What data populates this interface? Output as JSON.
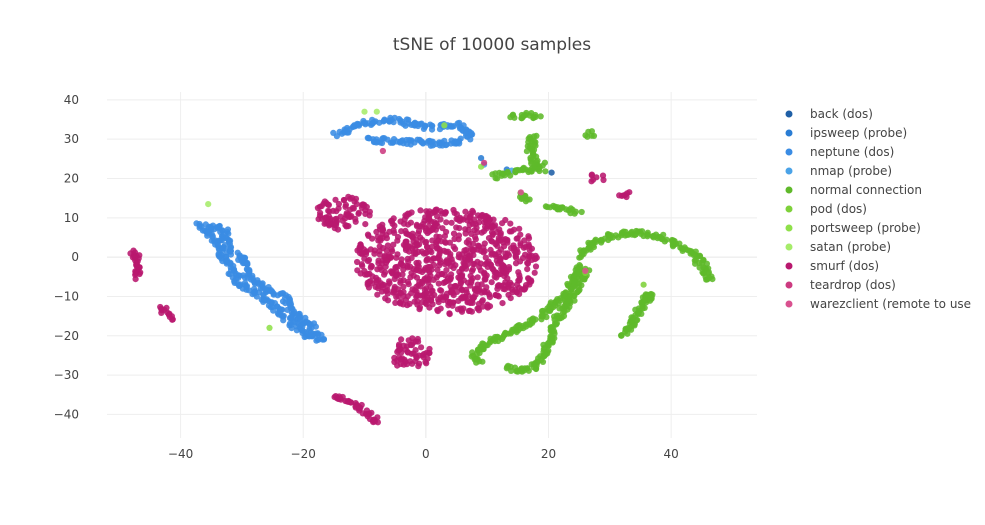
{
  "chart_data": {
    "type": "scatter",
    "title": "tSNE of 10000 samples",
    "xlabel": "",
    "ylabel": "",
    "xlim": [
      -52,
      54
    ],
    "ylim": [
      -46,
      42
    ],
    "x_ticks": [
      -40,
      -20,
      0,
      20,
      40
    ],
    "y_ticks": [
      -40,
      -30,
      -20,
      -10,
      0,
      10,
      20,
      30,
      40
    ],
    "grid": true,
    "legend_position": "right",
    "series": [
      {
        "name": "back (dos)",
        "color": "#1f5fa6",
        "x": [
          20.5
        ],
        "y": [
          21.5
        ]
      },
      {
        "name": "ipsweep (probe)",
        "color": "#2a7dd4",
        "x": [
          13.2,
          9.0
        ],
        "y": [
          22.3,
          25.2
        ]
      },
      {
        "name": "neptune (dos)",
        "color": "#3a8ce4",
        "clusters": [
          {
            "shape": "band",
            "points": [
              [
                -14.4,
                31.0
              ],
              [
                -11.0,
                34.0
              ],
              [
                -5.0,
                35.0
              ],
              [
                0.0,
                33.0
              ],
              [
                5.0,
                33.5
              ],
              [
                7.5,
                31.5
              ],
              [
                5.0,
                29.0
              ],
              [
                0.0,
                29.0
              ],
              [
                -5.0,
                29.5
              ],
              [
                -10.0,
                30.0
              ]
            ]
          },
          {
            "shape": "band",
            "points": [
              [
                -37.0,
                8.5
              ],
              [
                -33.0,
                7.0
              ],
              [
                -32.0,
                2.0
              ],
              [
                -30.0,
                0.0
              ],
              [
                -29.0,
                -5.0
              ],
              [
                -26.0,
                -8.0
              ],
              [
                -23.0,
                -10.0
              ],
              [
                -22.0,
                -14.0
              ],
              [
                -19.0,
                -17.0
              ],
              [
                -17.0,
                -21.5
              ]
            ]
          },
          {
            "shape": "band",
            "points": [
              [
                -36.5,
                7.5
              ],
              [
                -34.0,
                4.0
              ],
              [
                -33.0,
                0.0
              ],
              [
                -30.5,
                -6.5
              ],
              [
                -27.0,
                -9.5
              ],
              [
                -24.5,
                -13.0
              ],
              [
                -20.0,
                -19.0
              ],
              [
                -18.0,
                -21.0
              ]
            ]
          }
        ]
      },
      {
        "name": "nmap (probe)",
        "color": "#4aa3e8",
        "x": [
          9.5,
          14.0
        ],
        "y": [
          23.5,
          22.0
        ]
      },
      {
        "name": "normal connection",
        "color": "#5fb92a",
        "clusters": [
          {
            "shape": "band",
            "points": [
              [
                14.0,
                36.0
              ],
              [
                18.5,
                36.0
              ]
            ]
          },
          {
            "shape": "band",
            "points": [
              [
                17.5,
                31.0
              ],
              [
                17.0,
                27.0
              ],
              [
                18.0,
                23.0
              ],
              [
                19.5,
                22.0
              ]
            ]
          },
          {
            "shape": "band",
            "points": [
              [
                11.0,
                20.5
              ],
              [
                14.0,
                21.5
              ],
              [
                17.5,
                22.5
              ],
              [
                19.0,
                23.5
              ]
            ]
          },
          {
            "shape": "band",
            "points": [
              [
                15.0,
                16.5
              ],
              [
                16.5,
                14.0
              ]
            ]
          },
          {
            "shape": "band",
            "points": [
              [
                20.0,
                13.0
              ],
              [
                23.0,
                12.0
              ],
              [
                25.0,
                11.5
              ]
            ]
          },
          {
            "shape": "band",
            "points": [
              [
                26.5,
                31.0
              ],
              [
                27.0,
                31.5
              ]
            ]
          },
          {
            "shape": "band",
            "points": [
              [
                25.0,
                0.0
              ],
              [
                27.5,
                4.0
              ],
              [
                32.0,
                6.0
              ],
              [
                36.0,
                6.0
              ],
              [
                40.0,
                4.0
              ],
              [
                43.5,
                1.0
              ],
              [
                45.5,
                -3.0
              ],
              [
                46.5,
                -6.0
              ]
            ]
          },
          {
            "shape": "band",
            "points": [
              [
                25.5,
                -2.0
              ],
              [
                23.0,
                -9.0
              ],
              [
                19.0,
                -15.0
              ],
              [
                14.0,
                -19.0
              ],
              [
                10.0,
                -22.0
              ],
              [
                7.5,
                -25.5
              ],
              [
                9.0,
                -27.0
              ]
            ]
          },
          {
            "shape": "band",
            "points": [
              [
                26.0,
                -3.0
              ],
              [
                24.0,
                -10.0
              ],
              [
                21.5,
                -15.5
              ],
              [
                20.0,
                -22.0
              ],
              [
                18.5,
                -27.0
              ],
              [
                16.0,
                -29.0
              ],
              [
                13.0,
                -28.0
              ]
            ]
          },
          {
            "shape": "band",
            "points": [
              [
                32.0,
                -20.0
              ],
              [
                33.5,
                -17.0
              ],
              [
                35.0,
                -13.0
              ],
              [
                36.5,
                -9.0
              ],
              [
                36.0,
                -11.0
              ]
            ]
          }
        ]
      },
      {
        "name": "pod (dos)",
        "color": "#7ed13a",
        "x": [
          35.5,
          26.0
        ],
        "y": [
          -7.0,
          -4.0
        ]
      },
      {
        "name": "portsweep (probe)",
        "color": "#8fe04a",
        "x": [
          -25.5,
          3.0,
          9.0
        ],
        "y": [
          -18.0,
          33.5,
          23.0
        ]
      },
      {
        "name": "satan (probe)",
        "color": "#a6ec6a",
        "x": [
          -35.5,
          -10.0,
          -8.0
        ],
        "y": [
          13.5,
          37.0,
          37.0
        ]
      },
      {
        "name": "smurf (dos)",
        "color": "#b8186e",
        "clusters": [
          {
            "shape": "ellipse",
            "center": [
              3.5,
              -1.0
            ],
            "radius": [
              15.0,
              13.5
            ]
          },
          {
            "shape": "ellipse",
            "center": [
              -13.5,
              11.0
            ],
            "radius": [
              4.5,
              4.5
            ]
          },
          {
            "shape": "ellipse",
            "center": [
              -2.5,
              -24.5
            ],
            "radius": [
              3.5,
              4.0
            ]
          },
          {
            "shape": "ellipse",
            "center": [
              27.8,
              20.0
            ],
            "radius": [
              1.4,
              1.2
            ]
          },
          {
            "shape": "band",
            "points": [
              [
                -47.5,
                1.5
              ],
              [
                -47.0,
                -5.5
              ]
            ]
          },
          {
            "shape": "band",
            "points": [
              [
                -43.0,
                -13.0
              ],
              [
                -41.0,
                -16.0
              ]
            ]
          },
          {
            "shape": "band",
            "points": [
              [
                -15.0,
                -35.0
              ],
              [
                -11.5,
                -37.5
              ],
              [
                -7.5,
                -42.0
              ]
            ]
          },
          {
            "shape": "band",
            "points": [
              [
                32.0,
                15.5
              ],
              [
                33.5,
                16.5
              ]
            ]
          }
        ]
      },
      {
        "name": "teardrop (dos)",
        "color": "#cc3a80",
        "x": [
          -7.0,
          9.5
        ],
        "y": [
          27.0,
          24.0
        ]
      },
      {
        "name": "warezclient (remote to use",
        "color": "#d9518f",
        "x": [
          15.5,
          26.0
        ],
        "y": [
          16.5,
          -3.5
        ]
      }
    ]
  }
}
